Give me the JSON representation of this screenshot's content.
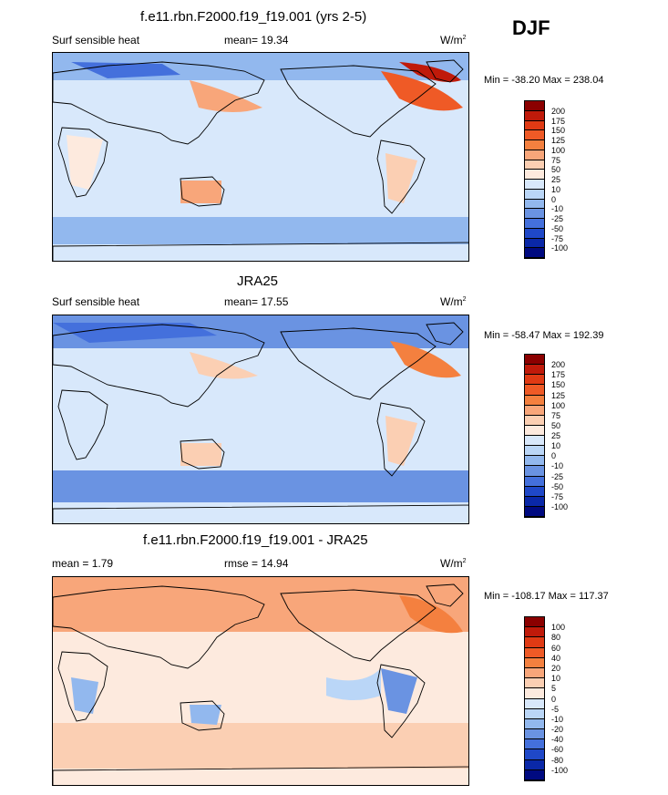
{
  "season": "DJF",
  "panels": [
    {
      "title": "f.e11.rbn.F2000.f19_f19.001 (yrs 2-5)",
      "left": "Surf sensible heat",
      "middle": "mean=  19.34",
      "units": "W/m",
      "units_sup": "2",
      "minmax": "Min = -38.20 Max = 238.04",
      "levels": [
        "200",
        "175",
        "150",
        "125",
        "100",
        "75",
        "50",
        "25",
        "10",
        "0",
        "-10",
        "-25",
        "-50",
        "-75",
        "-100"
      ],
      "colors": [
        "#8b0000",
        "#c01a0a",
        "#e03a14",
        "#ef5a26",
        "#f4803f",
        "#f8a67a",
        "#fbcfb3",
        "#fdeade",
        "#d8e8fb",
        "#bad6f7",
        "#92b8ee",
        "#6a93e2",
        "#4470dc",
        "#1f48c8",
        "#0a28a8",
        "#000a80"
      ]
    },
    {
      "title": "JRA25",
      "left": "Surf sensible heat",
      "middle": "mean=  17.55",
      "units": "W/m",
      "units_sup": "2",
      "minmax": "Min = -58.47 Max = 192.39",
      "levels": [
        "200",
        "175",
        "150",
        "125",
        "100",
        "75",
        "50",
        "25",
        "10",
        "0",
        "-10",
        "-25",
        "-50",
        "-75",
        "-100"
      ],
      "colors": [
        "#8b0000",
        "#c01a0a",
        "#e03a14",
        "#ef5a26",
        "#f4803f",
        "#f8a67a",
        "#fbcfb3",
        "#fdeade",
        "#d8e8fb",
        "#bad6f7",
        "#92b8ee",
        "#6a93e2",
        "#4470dc",
        "#1f48c8",
        "#0a28a8",
        "#000a80"
      ]
    },
    {
      "title": "f.e11.rbn.F2000.f19_f19.001 - JRA25",
      "left": "mean =   1.79",
      "middle": "rmse =  14.94",
      "units": "W/m",
      "units_sup": "2",
      "minmax": "Min = -108.17 Max = 117.37",
      "levels": [
        "100",
        "80",
        "60",
        "40",
        "20",
        "10",
        "5",
        "0",
        "-5",
        "-10",
        "-20",
        "-40",
        "-60",
        "-80",
        "-100"
      ],
      "colors": [
        "#8b0000",
        "#c01a0a",
        "#e03a14",
        "#ef5a26",
        "#f4803f",
        "#f8a67a",
        "#fbcfb3",
        "#fdeade",
        "#d8e8fb",
        "#bad6f7",
        "#92b8ee",
        "#6a93e2",
        "#4470dc",
        "#1f48c8",
        "#0a28a8",
        "#000a80"
      ]
    }
  ]
}
